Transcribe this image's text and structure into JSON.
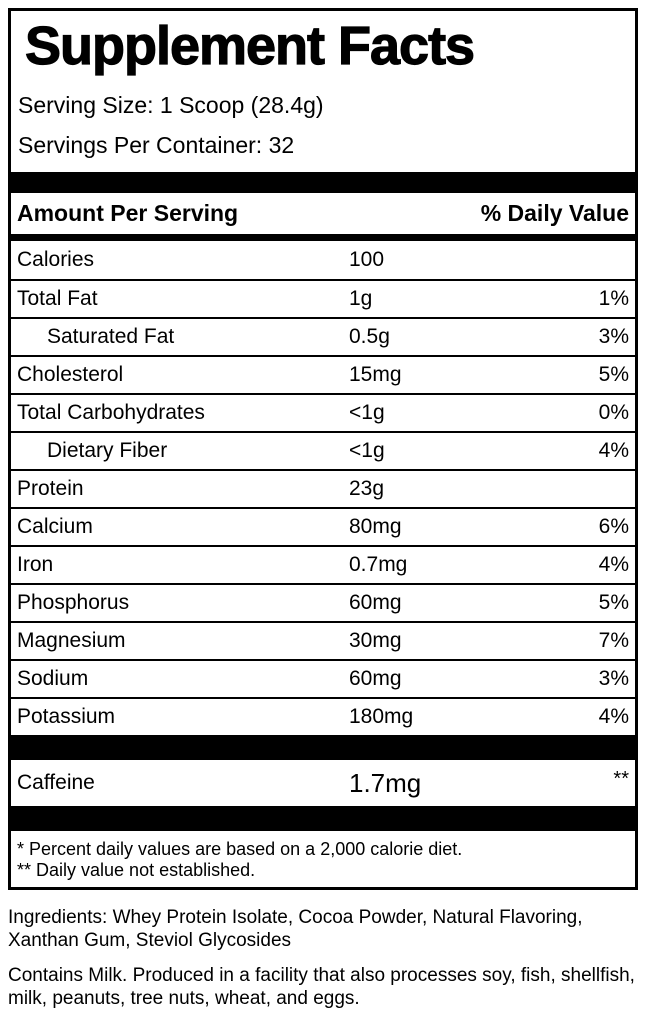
{
  "label": {
    "title": "Supplement Facts",
    "serving_size": "Serving Size: 1 Scoop (28.4g)",
    "servings_per_container": "Servings Per Container: 32",
    "header": {
      "amount_col": "Amount Per Serving",
      "dv_col": "% Daily Value"
    },
    "rows": [
      {
        "name": "Calories",
        "amount": "100",
        "dv": "",
        "indent": false
      },
      {
        "name": "Total Fat",
        "amount": "1g",
        "dv": "1%",
        "indent": false
      },
      {
        "name": "Saturated Fat",
        "amount": "0.5g",
        "dv": "3%",
        "indent": true
      },
      {
        "name": "Cholesterol",
        "amount": "15mg",
        "dv": "5%",
        "indent": false
      },
      {
        "name": "Total Carbohydrates",
        "amount": "<1g",
        "dv": "0%",
        "indent": false
      },
      {
        "name": "Dietary Fiber",
        "amount": "<1g",
        "dv": "4%",
        "indent": true
      },
      {
        "name": "Protein",
        "amount": "23g",
        "dv": "",
        "indent": false
      },
      {
        "name": "Calcium",
        "amount": "80mg",
        "dv": "6%",
        "indent": false
      },
      {
        "name": "Iron",
        "amount": "0.7mg",
        "dv": "4%",
        "indent": false
      },
      {
        "name": "Phosphorus",
        "amount": "60mg",
        "dv": "5%",
        "indent": false
      },
      {
        "name": "Magnesium",
        "amount": "30mg",
        "dv": "7%",
        "indent": false
      },
      {
        "name": "Sodium",
        "amount": "60mg",
        "dv": "3%",
        "indent": false
      },
      {
        "name": "Potassium",
        "amount": "180mg",
        "dv": "4%",
        "indent": false
      }
    ],
    "caffeine_row": {
      "name": "Caffeine",
      "amount": "1.7mg",
      "dv": "**"
    },
    "footnotes": {
      "percent_dv": "* Percent daily values are based on a 2,000 calorie diet.",
      "not_established": "** Daily value not established."
    }
  },
  "below": {
    "ingredients": "Ingredients: Whey Protein Isolate, Cocoa Powder, Natural Flavoring, Xanthan Gum, Steviol Glycosides",
    "allergens": "Contains Milk. Produced in a facility that also processes soy, fish, shellfish, milk, peanuts, tree nuts, wheat, and eggs."
  },
  "colors": {
    "ink": "#000000",
    "background": "#ffffff"
  }
}
